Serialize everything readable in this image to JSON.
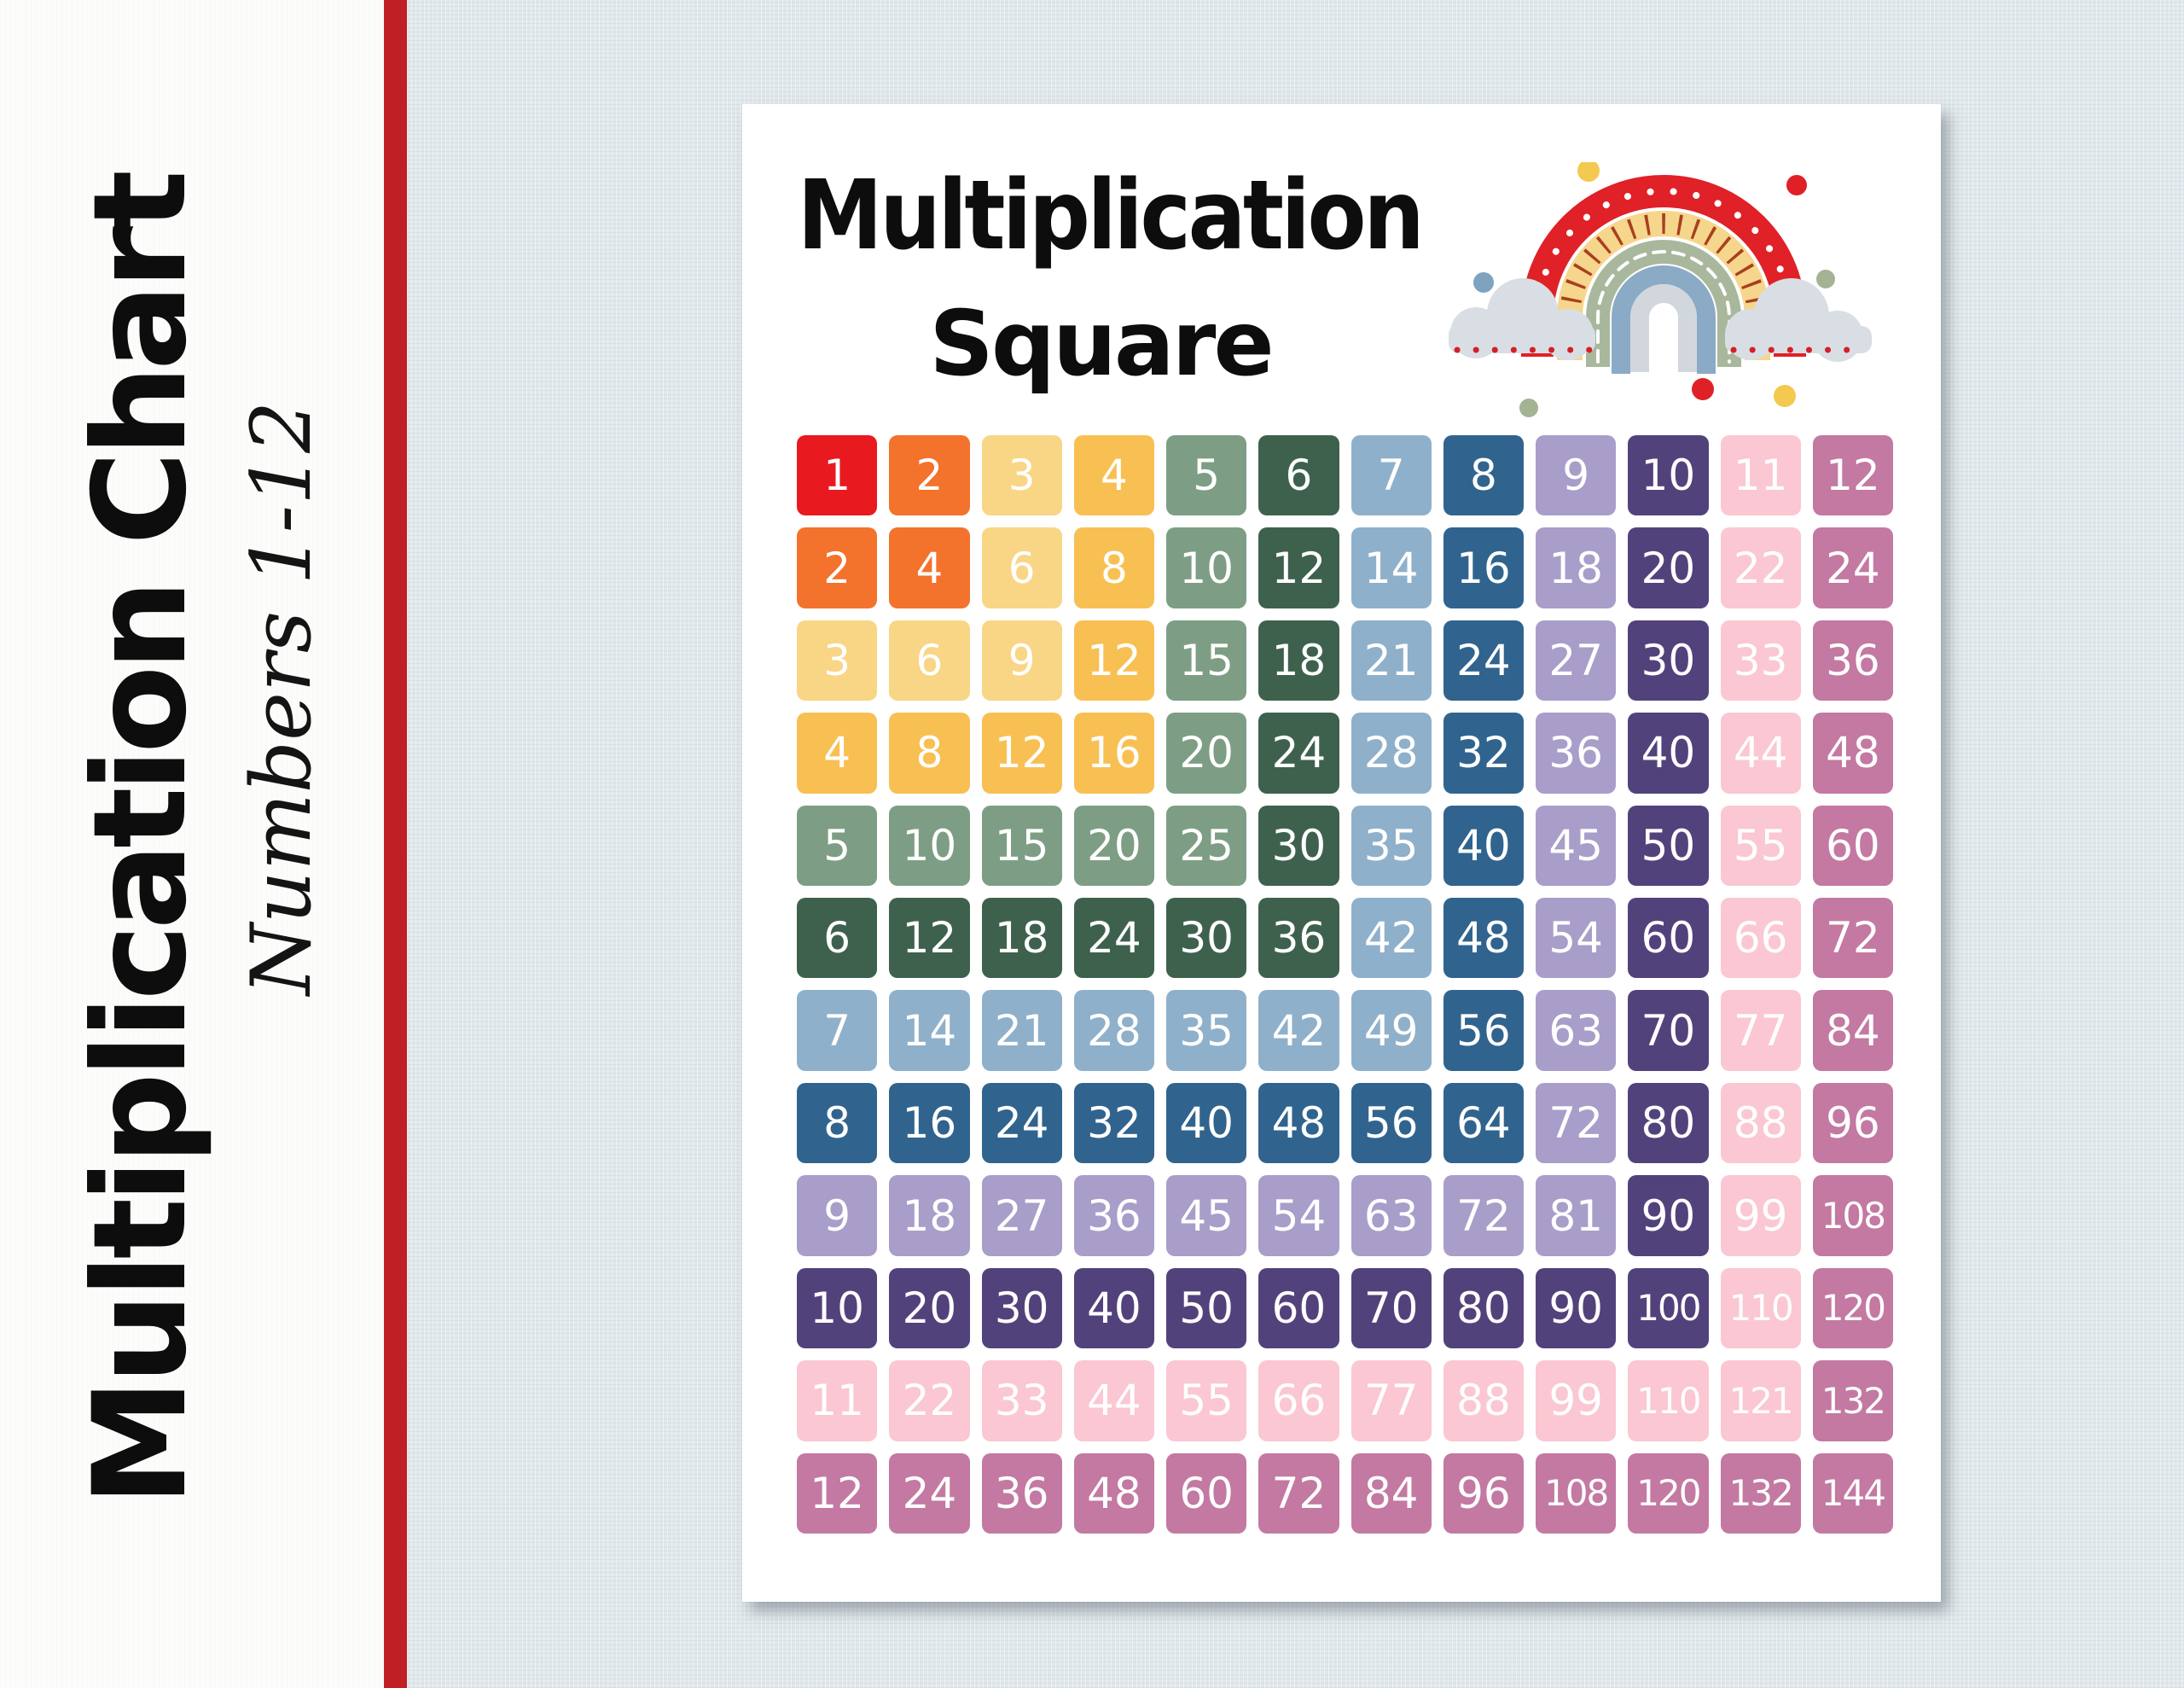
{
  "sidebar": {
    "title": "Multiplication Chart",
    "subtitle": "Numbers 1-12"
  },
  "poster": {
    "title_line1": "Multiplication",
    "title_line2": "Square"
  },
  "chart_data": {
    "type": "table",
    "title": "Multiplication Square",
    "row_factors": [
      1,
      2,
      3,
      4,
      5,
      6,
      7,
      8,
      9,
      10,
      11,
      12
    ],
    "col_factors": [
      1,
      2,
      3,
      4,
      5,
      6,
      7,
      8,
      9,
      10,
      11,
      12
    ],
    "values": [
      [
        1,
        2,
        3,
        4,
        5,
        6,
        7,
        8,
        9,
        10,
        11,
        12
      ],
      [
        2,
        4,
        6,
        8,
        10,
        12,
        14,
        16,
        18,
        20,
        22,
        24
      ],
      [
        3,
        6,
        9,
        12,
        15,
        18,
        21,
        24,
        27,
        30,
        33,
        36
      ],
      [
        4,
        8,
        12,
        16,
        20,
        24,
        28,
        32,
        36,
        40,
        44,
        48
      ],
      [
        5,
        10,
        15,
        20,
        25,
        30,
        35,
        40,
        45,
        50,
        55,
        60
      ],
      [
        6,
        12,
        18,
        24,
        30,
        36,
        42,
        48,
        54,
        60,
        66,
        72
      ],
      [
        7,
        14,
        21,
        28,
        35,
        42,
        49,
        56,
        63,
        70,
        77,
        84
      ],
      [
        8,
        16,
        24,
        32,
        40,
        48,
        56,
        64,
        72,
        80,
        88,
        96
      ],
      [
        9,
        18,
        27,
        36,
        45,
        54,
        63,
        72,
        81,
        90,
        99,
        108
      ],
      [
        10,
        20,
        30,
        40,
        50,
        60,
        70,
        80,
        90,
        100,
        110,
        120
      ],
      [
        11,
        22,
        33,
        44,
        55,
        66,
        77,
        88,
        99,
        110,
        121,
        132
      ],
      [
        12,
        24,
        36,
        48,
        60,
        72,
        84,
        96,
        108,
        120,
        132,
        144
      ]
    ]
  },
  "grid": {
    "color_rule": "cell background = band_palette[max(row,col)]",
    "band_palette": [
      "#e8191f",
      "#f3722c",
      "#f8d685",
      "#f8c052",
      "#7d9e84",
      "#3e614e",
      "#8fb0ca",
      "#30648e",
      "#a89ec9",
      "#52427c",
      "#fac7d2",
      "#c379a1"
    ],
    "number_color": "#ffffff"
  },
  "colors": {
    "left_panel_bg": "#fcfcfb",
    "stripe_red": "#c01f26",
    "canvas_bg": "#e1e8eb",
    "poster_bg": "#ffffff",
    "title_color": "#0d0d0d"
  },
  "rainbow": {
    "outer_arc": "#e02127",
    "second_arc": "#f6d68c",
    "second_arc_ticks": "#a8401f",
    "third_arc": "#a9b89c",
    "fourth_arc": "#8aaac6",
    "inner_arc": "#d2d7de",
    "cloud": "#d9dee4",
    "cloud_dots": "#d32027",
    "scatter_dot_colors": [
      "#f3c94f",
      "#df2127",
      "#7da3bf",
      "#a3b394"
    ]
  }
}
